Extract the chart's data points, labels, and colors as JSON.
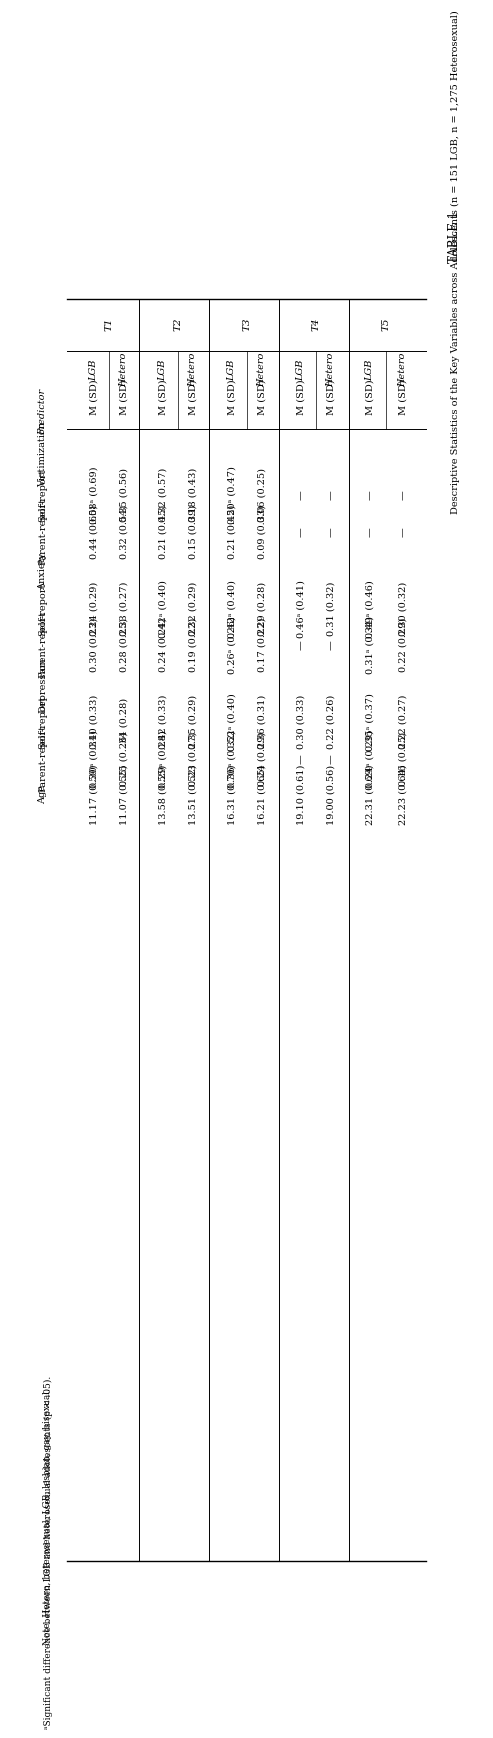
{
  "title": "TABLE 1",
  "subtitle": "Descriptive Statistics of the Key Variables across Adolescents (n = 151 LGB, n = 1,275 Heterosexual)",
  "time_points": [
    "T1",
    "T2",
    "T3",
    "T4",
    "T5"
  ],
  "sub_cols": [
    "LGB\nM (SD)",
    "Hetero\nM (SD)"
  ],
  "row_labels": [
    [
      "Victimization",
      true,
      false
    ],
    [
      "Self-report",
      false,
      false
    ],
    [
      "Parent-report",
      false,
      false
    ],
    [
      "Anxiety",
      true,
      false
    ],
    [
      "Self-report",
      false,
      false
    ],
    [
      "Parent-report",
      false,
      false
    ],
    [
      "Depression",
      true,
      false
    ],
    [
      "Self-report",
      false,
      false
    ],
    [
      "Parent-report",
      false,
      false
    ],
    [
      "Age",
      true,
      false
    ]
  ],
  "cells": {
    "T1_LGB": [
      "",
      "0.58ᵃ (0.69)",
      "0.44 (0.60)",
      "",
      "0.24 (0.29)",
      "0.30 (0.23)",
      "",
      "0.40 (0.33)",
      "0.30ᵃ (0.31)",
      "11.17 (0.59)"
    ],
    "T1_Hetero": [
      "",
      "0.35 (0.56)",
      "0.32 (0.54)",
      "",
      "0.33 (0.27)",
      "0.28 (0.25)",
      "",
      ".34 (0.28)",
      "0.25 (0.26)",
      "11.07 (0.55)"
    ],
    "T2_LGB": [
      "",
      "0.32 (0.57)",
      "0.21 (0.45)",
      "",
      "0.42ᵃ (0.40)",
      "0.24 (0.24)",
      "",
      "0.42 (0.33)",
      "0.29ᵃ (0.28)",
      "13.58 (0.55)"
    ],
    "T2_Hetero": [
      "",
      "0.18 (0.43)",
      "0.15 (0.39)",
      "",
      "0.32 (0.29)",
      "0.19 (0.22)",
      "",
      "0.35 (0.29)",
      "0.23 (0.27)",
      "13.51 (0.52)"
    ],
    "T3_LGB": [
      "",
      "0.20ᵃ (0.47)",
      "0.21 (0.45)",
      "",
      "0.42ᵃ (0.40)",
      "0.26ᵃ (0.26)",
      "",
      "0.52ᵃ (0.40)",
      "0.36ᵃ (0.32)",
      "16.31 (0.70)"
    ],
    "T3_Hetero": [
      "",
      "0.06 (0.25)",
      "0.09 (0.33)",
      "",
      "0.29 (0.28)",
      "0.17 (0.22)",
      "",
      "0.36 (0.31)",
      "0.24 (0.29)",
      "16.21 (0.65)"
    ],
    "T4_LGB": [
      "",
      "—",
      "—",
      "",
      "0.46ᵃ (0.41)",
      "—",
      "",
      "0.30 (0.33)",
      "—",
      "19.10 (0.61)"
    ],
    "T4_Hetero": [
      "",
      "—",
      "—",
      "",
      "0.31 (0.32)",
      "—",
      "",
      "0.22 (0.26)",
      "—",
      "19.00 (0.56)"
    ],
    "T5_LGB": [
      "",
      "—",
      "—",
      "",
      "0.49ᵃ (0.46)",
      "0.31ᵃ (0.34)",
      "",
      "0.35ᵃ (0.37)",
      "0.24ᵃ (0.29)",
      "22.31 (0.69)"
    ],
    "T5_Hetero": [
      "",
      "—",
      "—",
      "",
      "0.30 (0.32)",
      "0.22 (0.29)",
      "",
      "0.22 (0.27)",
      "0.16 (0.25)",
      "22.23 (0.64)"
    ]
  },
  "note1": "Note. Hetero, heterosexual; LGB, lesbian, gay, bisexual.",
  "note2": "ᵃSignificant difference between LGB and heterosexual adolescents (p < .05).",
  "bg_color": "#ffffff",
  "text_color": "#000000",
  "line_color": "#000000",
  "title_fs": 8.5,
  "subtitle_fs": 7.0,
  "header_fs": 7.5,
  "cell_fs": 7.0,
  "pred_fs": 7.0,
  "note_fs": 6.5
}
